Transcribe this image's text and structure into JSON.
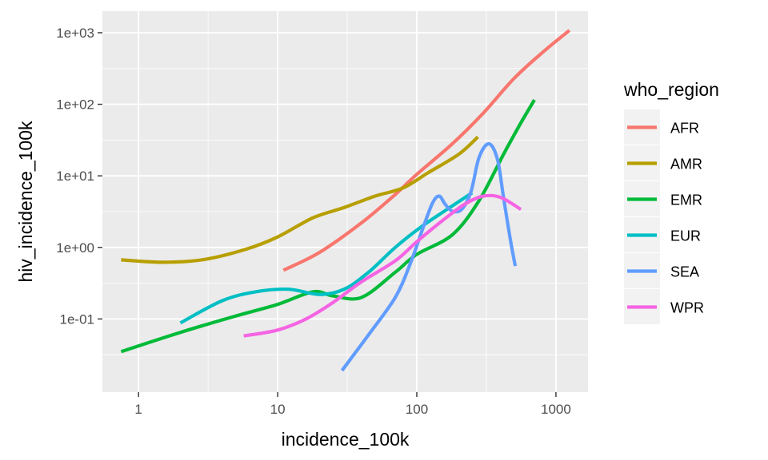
{
  "chart_data": {
    "type": "line",
    "xlabel": "incidence_100k",
    "ylabel": "hiv_incidence_100k",
    "x_scale": "log10",
    "y_scale": "log10",
    "xlim": [
      0.55,
      1700
    ],
    "ylim": [
      0.0095,
      2000
    ],
    "x_ticks": [
      {
        "value": 1,
        "label": "1"
      },
      {
        "value": 10,
        "label": "10"
      },
      {
        "value": 100,
        "label": "100"
      },
      {
        "value": 1000,
        "label": "1000"
      }
    ],
    "y_ticks": [
      {
        "value": 0.1,
        "label": "1e-01"
      },
      {
        "value": 1,
        "label": "1e+00"
      },
      {
        "value": 10,
        "label": "1e+01"
      },
      {
        "value": 100,
        "label": "1e+02"
      },
      {
        "value": 1000,
        "label": "1e+03"
      }
    ],
    "grid": true,
    "legend": {
      "title": "who_region",
      "position": "right"
    },
    "series": [
      {
        "name": "AFR",
        "color": "#F8766D",
        "points": [
          [
            11,
            0.48
          ],
          [
            20,
            0.85
          ],
          [
            40,
            2.2
          ],
          [
            70,
            5.5
          ],
          [
            100,
            10.5
          ],
          [
            180,
            28
          ],
          [
            300,
            75
          ],
          [
            500,
            230
          ],
          [
            800,
            530
          ],
          [
            1250,
            1080
          ]
        ]
      },
      {
        "name": "AMR",
        "color": "#B79F00",
        "points": [
          [
            0.75,
            0.67
          ],
          [
            1.5,
            0.62
          ],
          [
            3,
            0.68
          ],
          [
            6,
            0.95
          ],
          [
            10,
            1.4
          ],
          [
            18,
            2.6
          ],
          [
            30,
            3.6
          ],
          [
            50,
            5.2
          ],
          [
            80,
            6.8
          ],
          [
            120,
            11
          ],
          [
            200,
            20
          ],
          [
            275,
            35
          ]
        ]
      },
      {
        "name": "EMR",
        "color": "#00BA38",
        "points": [
          [
            0.75,
            0.035
          ],
          [
            2,
            0.065
          ],
          [
            5,
            0.11
          ],
          [
            10,
            0.16
          ],
          [
            18,
            0.24
          ],
          [
            25,
            0.21
          ],
          [
            40,
            0.2
          ],
          [
            70,
            0.45
          ],
          [
            100,
            0.8
          ],
          [
            180,
            1.5
          ],
          [
            280,
            4.5
          ],
          [
            420,
            20
          ],
          [
            560,
            55
          ],
          [
            700,
            115
          ]
        ]
      },
      {
        "name": "EUR",
        "color": "#00BFC4",
        "points": [
          [
            2,
            0.088
          ],
          [
            4,
            0.18
          ],
          [
            7,
            0.24
          ],
          [
            12,
            0.26
          ],
          [
            20,
            0.22
          ],
          [
            30,
            0.26
          ],
          [
            45,
            0.45
          ],
          [
            70,
            1.0
          ],
          [
            110,
            2.0
          ],
          [
            180,
            3.8
          ],
          [
            250,
            5.8
          ]
        ]
      },
      {
        "name": "SEA",
        "color": "#619CFF",
        "points": [
          [
            29,
            0.019
          ],
          [
            45,
            0.06
          ],
          [
            70,
            0.2
          ],
          [
            90,
            0.6
          ],
          [
            110,
            1.8
          ],
          [
            130,
            4.2
          ],
          [
            145,
            5.2
          ],
          [
            160,
            4.0
          ],
          [
            180,
            3.2
          ],
          [
            210,
            3.4
          ],
          [
            245,
            6.0
          ],
          [
            280,
            18
          ],
          [
            330,
            28
          ],
          [
            380,
            17
          ],
          [
            420,
            5.0
          ],
          [
            470,
            1.3
          ],
          [
            510,
            0.55
          ]
        ]
      },
      {
        "name": "WPR",
        "color": "#F564E3",
        "points": [
          [
            5.7,
            0.058
          ],
          [
            10,
            0.07
          ],
          [
            16,
            0.1
          ],
          [
            25,
            0.17
          ],
          [
            40,
            0.33
          ],
          [
            70,
            0.65
          ],
          [
            100,
            1.2
          ],
          [
            150,
            2.3
          ],
          [
            220,
            4.0
          ],
          [
            300,
            5.2
          ],
          [
            400,
            5.0
          ],
          [
            560,
            3.4
          ]
        ]
      }
    ]
  }
}
